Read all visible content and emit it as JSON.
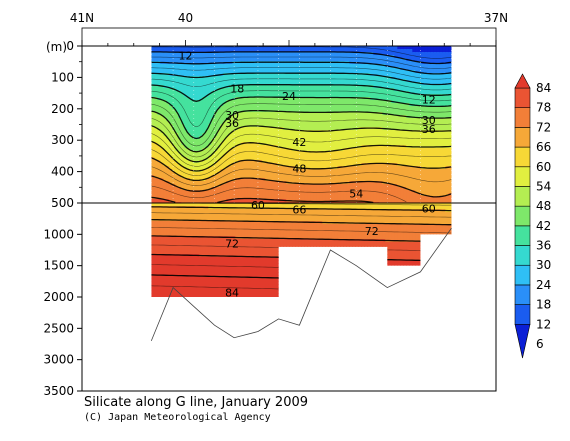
{
  "caption": "Silicate along G line, January 2009",
  "credit": "(C) Japan Meteorological Agency",
  "chart_data": {
    "type": "heatmap",
    "title": "Silicate along G line, January 2009",
    "ylabel": "(m)",
    "x_axis": {
      "label_ticks": [
        "41N",
        "40",
        "37N"
      ],
      "label_ticks_lat": [
        41,
        40,
        37
      ],
      "range_lat": [
        41,
        37
      ],
      "direction": "north-to-south"
    },
    "y_axis": {
      "tick_labels": [
        "0",
        "100",
        "200",
        "300",
        "400",
        "500",
        "1000",
        "1500",
        "2000",
        "2500",
        "3000",
        "3500"
      ],
      "tick_depths": [
        0,
        100,
        200,
        300,
        400,
        500,
        1000,
        1500,
        2000,
        2500,
        3000,
        3500
      ],
      "upper_panel_range_m": [
        0,
        500
      ],
      "lower_panel_range_m": [
        500,
        3500
      ],
      "split_depth_m": 500
    },
    "colorbar": {
      "levels": [
        6,
        12,
        18,
        24,
        30,
        36,
        42,
        48,
        54,
        60,
        66,
        72,
        78,
        84
      ],
      "tick_labels": [
        "6",
        "12",
        "18",
        "24",
        "30",
        "36",
        "42",
        "48",
        "54",
        "60",
        "66",
        "72",
        "78",
        "84"
      ],
      "colors": [
        "#0b1fd6",
        "#1a5cf0",
        "#2a8ff8",
        "#2fbff5",
        "#35d9d0",
        "#45e29e",
        "#7ee86a",
        "#b4ee52",
        "#e1ef40",
        "#f7d836",
        "#f6a838",
        "#f27f38",
        "#ea5433",
        "#e23a2c"
      ],
      "extends": "both"
    },
    "contour_labels": [
      "12",
      "18",
      "24",
      "30",
      "36",
      "42",
      "48",
      "54",
      "60",
      "66",
      "72",
      "84",
      "12",
      "30",
      "36",
      "60",
      "72"
    ],
    "sections": [
      {
        "lat_start": 40.33,
        "lat_end": 39.1,
        "bottom_depth_m": 2000
      },
      {
        "lat_start": 39.1,
        "lat_end": 38.05,
        "bottom_depth_m": 1200
      },
      {
        "lat_start": 38.05,
        "lat_end": 37.73,
        "bottom_depth_m": 1500
      },
      {
        "lat_start": 37.73,
        "lat_end": 37.43,
        "bottom_depth_m": 1000
      }
    ],
    "seafloor": [
      {
        "lat": 40.33,
        "depth": 2700
      },
      {
        "lat": 40.12,
        "depth": 1850
      },
      {
        "lat": 39.92,
        "depth": 2150
      },
      {
        "lat": 39.72,
        "depth": 2450
      },
      {
        "lat": 39.53,
        "depth": 2650
      },
      {
        "lat": 39.3,
        "depth": 2550
      },
      {
        "lat": 39.1,
        "depth": 2350
      },
      {
        "lat": 38.9,
        "depth": 2450
      },
      {
        "lat": 38.6,
        "depth": 1250
      },
      {
        "lat": 38.35,
        "depth": 1500
      },
      {
        "lat": 38.05,
        "depth": 1850
      },
      {
        "lat": 37.73,
        "depth": 1600
      },
      {
        "lat": 37.43,
        "depth": 900
      }
    ],
    "grid": false,
    "legend_placement": "right"
  }
}
